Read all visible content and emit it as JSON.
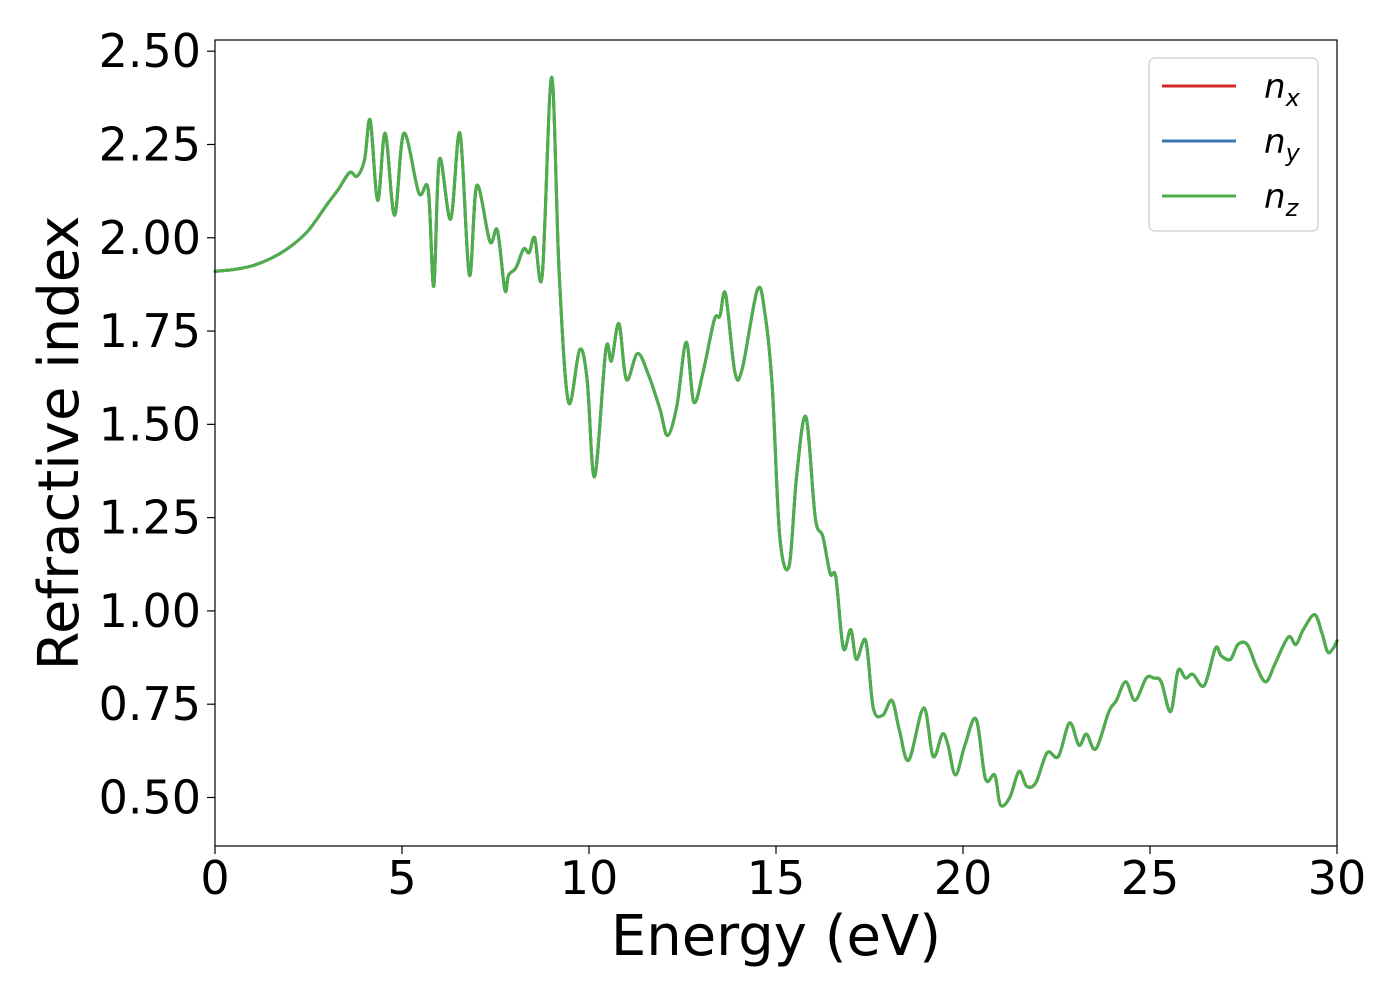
{
  "chart_data": {
    "type": "line",
    "xlabel": "Energy (eV)",
    "ylabel": "Refractive index",
    "xlim": [
      0,
      30
    ],
    "ylim": [
      0.37,
      2.53
    ],
    "xticks": [
      "0",
      "5",
      "10",
      "15",
      "20",
      "25",
      "30"
    ],
    "xtick_values": [
      0,
      5,
      10,
      15,
      20,
      25,
      30
    ],
    "yticks": [
      "0.50",
      "0.75",
      "1.00",
      "1.25",
      "1.50",
      "1.75",
      "2.00",
      "2.25",
      "2.50"
    ],
    "ytick_values": [
      0.5,
      0.75,
      1.0,
      1.25,
      1.5,
      1.75,
      2.0,
      2.25,
      2.5
    ],
    "grid": false,
    "legend_position": "top-right",
    "x": [
      0,
      0.5,
      1.0,
      1.5,
      2.0,
      2.5,
      3.0,
      3.3,
      3.6,
      3.8,
      4.0,
      4.15,
      4.35,
      4.55,
      4.8,
      5.05,
      5.45,
      5.7,
      5.85,
      6.0,
      6.3,
      6.55,
      6.8,
      7.0,
      7.35,
      7.55,
      7.75,
      7.85,
      8.05,
      8.25,
      8.4,
      8.55,
      8.75,
      9.0,
      9.2,
      9.45,
      9.75,
      9.95,
      10.15,
      10.45,
      10.6,
      10.8,
      11.0,
      11.3,
      11.6,
      11.9,
      12.1,
      12.35,
      12.6,
      12.8,
      13.05,
      13.35,
      13.5,
      13.65,
      13.9,
      14.1,
      14.5,
      14.7,
      14.9,
      15.1,
      15.35,
      15.55,
      15.8,
      16.05,
      16.25,
      16.45,
      16.6,
      16.8,
      17.0,
      17.15,
      17.4,
      17.6,
      17.85,
      18.1,
      18.3,
      18.55,
      18.95,
      19.2,
      19.45,
      19.6,
      19.8,
      20.05,
      20.35,
      20.6,
      20.85,
      21.0,
      21.25,
      21.5,
      21.7,
      21.95,
      22.25,
      22.55,
      22.85,
      23.1,
      23.3,
      23.55,
      23.9,
      24.1,
      24.35,
      24.6,
      24.9,
      25.1,
      25.3,
      25.55,
      25.75,
      25.95,
      26.15,
      26.45,
      26.75,
      26.9,
      27.15,
      27.35,
      27.6,
      27.85,
      28.1,
      28.35,
      28.7,
      28.9,
      29.1,
      29.4,
      29.6,
      29.75,
      29.9,
      30.0
    ],
    "series": [
      {
        "name": "n_x",
        "label": "n",
        "sub": "x",
        "color": "#d62728",
        "values": [
          1.91,
          1.915,
          1.925,
          1.945,
          1.975,
          2.02,
          2.09,
          2.13,
          2.175,
          2.165,
          2.21,
          2.315,
          2.1,
          2.28,
          2.06,
          2.28,
          2.12,
          2.13,
          1.87,
          2.21,
          2.05,
          2.28,
          1.9,
          2.14,
          1.99,
          2.02,
          1.86,
          1.9,
          1.92,
          1.97,
          1.96,
          2.0,
          1.9,
          2.43,
          1.91,
          1.56,
          1.7,
          1.62,
          1.36,
          1.7,
          1.67,
          1.77,
          1.62,
          1.69,
          1.63,
          1.54,
          1.47,
          1.55,
          1.72,
          1.56,
          1.64,
          1.78,
          1.79,
          1.85,
          1.64,
          1.65,
          1.86,
          1.8,
          1.6,
          1.2,
          1.12,
          1.36,
          1.52,
          1.25,
          1.2,
          1.1,
          1.09,
          0.9,
          0.95,
          0.87,
          0.92,
          0.74,
          0.72,
          0.76,
          0.68,
          0.6,
          0.74,
          0.61,
          0.67,
          0.64,
          0.56,
          0.64,
          0.71,
          0.55,
          0.56,
          0.48,
          0.5,
          0.57,
          0.53,
          0.54,
          0.62,
          0.61,
          0.7,
          0.64,
          0.67,
          0.63,
          0.73,
          0.76,
          0.81,
          0.76,
          0.82,
          0.82,
          0.81,
          0.73,
          0.84,
          0.82,
          0.83,
          0.8,
          0.9,
          0.88,
          0.87,
          0.91,
          0.91,
          0.85,
          0.81,
          0.86,
          0.93,
          0.91,
          0.95,
          0.99,
          0.94,
          0.89,
          0.9,
          0.92
        ]
      },
      {
        "name": "n_y",
        "label": "n",
        "sub": "y",
        "color": "#3a77b0",
        "values": [
          1.91,
          1.915,
          1.925,
          1.945,
          1.975,
          2.02,
          2.09,
          2.13,
          2.175,
          2.165,
          2.21,
          2.315,
          2.1,
          2.28,
          2.06,
          2.28,
          2.12,
          2.13,
          1.87,
          2.21,
          2.05,
          2.28,
          1.9,
          2.14,
          1.99,
          2.02,
          1.86,
          1.9,
          1.92,
          1.97,
          1.96,
          2.0,
          1.9,
          2.43,
          1.91,
          1.56,
          1.7,
          1.62,
          1.36,
          1.7,
          1.67,
          1.77,
          1.62,
          1.69,
          1.63,
          1.54,
          1.47,
          1.55,
          1.72,
          1.56,
          1.64,
          1.78,
          1.79,
          1.85,
          1.64,
          1.65,
          1.86,
          1.8,
          1.6,
          1.2,
          1.12,
          1.36,
          1.52,
          1.25,
          1.2,
          1.1,
          1.09,
          0.9,
          0.95,
          0.87,
          0.92,
          0.74,
          0.72,
          0.76,
          0.68,
          0.6,
          0.74,
          0.61,
          0.67,
          0.64,
          0.56,
          0.64,
          0.71,
          0.55,
          0.56,
          0.48,
          0.5,
          0.57,
          0.53,
          0.54,
          0.62,
          0.61,
          0.7,
          0.64,
          0.67,
          0.63,
          0.73,
          0.76,
          0.81,
          0.76,
          0.82,
          0.82,
          0.81,
          0.73,
          0.84,
          0.82,
          0.83,
          0.8,
          0.9,
          0.88,
          0.87,
          0.91,
          0.91,
          0.85,
          0.81,
          0.86,
          0.93,
          0.91,
          0.95,
          0.99,
          0.94,
          0.89,
          0.9,
          0.92
        ]
      },
      {
        "name": "n_z",
        "label": "n",
        "sub": "z",
        "color": "#4daf4a",
        "values": [
          1.91,
          1.915,
          1.925,
          1.945,
          1.975,
          2.02,
          2.09,
          2.13,
          2.175,
          2.165,
          2.21,
          2.315,
          2.1,
          2.28,
          2.06,
          2.28,
          2.12,
          2.13,
          1.87,
          2.21,
          2.05,
          2.28,
          1.9,
          2.14,
          1.99,
          2.02,
          1.86,
          1.9,
          1.92,
          1.97,
          1.96,
          2.0,
          1.9,
          2.43,
          1.91,
          1.56,
          1.7,
          1.62,
          1.36,
          1.7,
          1.67,
          1.77,
          1.62,
          1.69,
          1.63,
          1.54,
          1.47,
          1.55,
          1.72,
          1.56,
          1.64,
          1.78,
          1.79,
          1.85,
          1.64,
          1.65,
          1.86,
          1.8,
          1.6,
          1.2,
          1.12,
          1.36,
          1.52,
          1.25,
          1.2,
          1.1,
          1.09,
          0.9,
          0.95,
          0.87,
          0.92,
          0.74,
          0.72,
          0.76,
          0.68,
          0.6,
          0.74,
          0.61,
          0.67,
          0.64,
          0.56,
          0.64,
          0.71,
          0.55,
          0.56,
          0.48,
          0.5,
          0.57,
          0.53,
          0.54,
          0.62,
          0.61,
          0.7,
          0.64,
          0.67,
          0.63,
          0.73,
          0.76,
          0.81,
          0.76,
          0.82,
          0.82,
          0.81,
          0.73,
          0.84,
          0.82,
          0.83,
          0.8,
          0.9,
          0.88,
          0.87,
          0.91,
          0.91,
          0.85,
          0.81,
          0.86,
          0.93,
          0.91,
          0.95,
          0.99,
          0.94,
          0.89,
          0.9,
          0.92
        ]
      }
    ]
  }
}
